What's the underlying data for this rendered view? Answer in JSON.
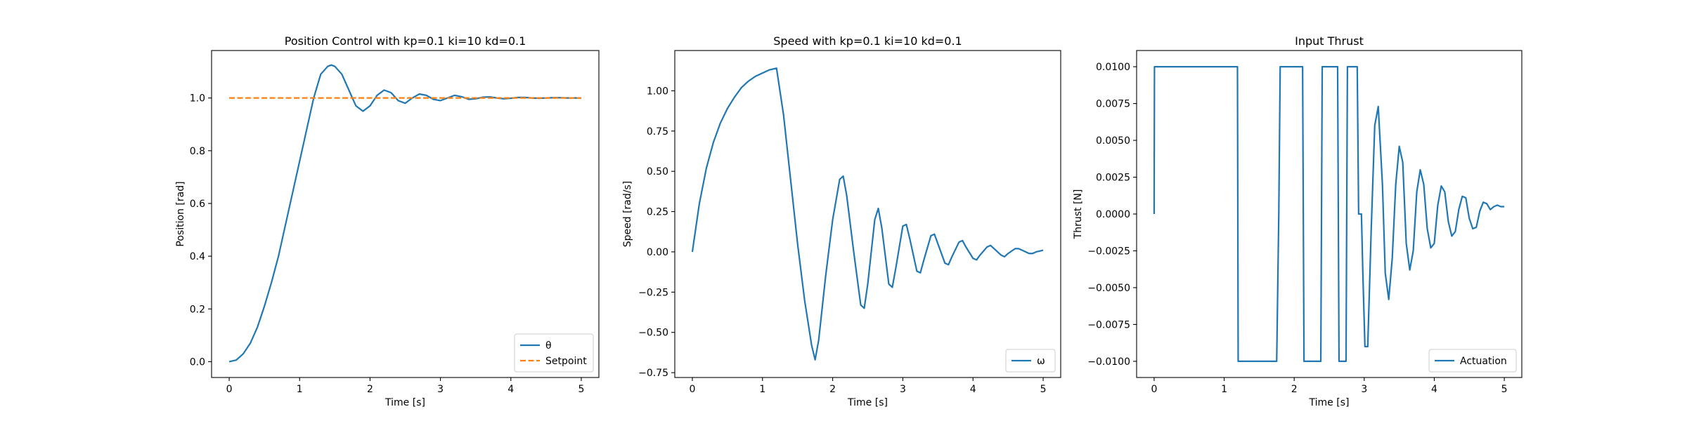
{
  "chart_data": [
    {
      "type": "line",
      "title": "Position Control with kp=0.1 ki=10 kd=0.1",
      "xlabel": "Time [s]",
      "ylabel": "Position [rad]",
      "xlim": [
        -0.25,
        5.25
      ],
      "ylim": [
        -0.06,
        1.18
      ],
      "xticks": [
        0,
        1,
        2,
        3,
        4,
        5
      ],
      "yticks": [
        0.0,
        0.2,
        0.4,
        0.6,
        0.8,
        1.0
      ],
      "ytick_labels": [
        "0.0",
        "0.2",
        "0.4",
        "0.6",
        "0.8",
        "1.0"
      ],
      "legend": "lower-right",
      "grid": false,
      "series": [
        {
          "name": "θ",
          "color": "#1f77b4",
          "style": "solid",
          "x": [
            0,
            0.1,
            0.2,
            0.3,
            0.4,
            0.5,
            0.6,
            0.7,
            0.8,
            0.9,
            1.0,
            1.1,
            1.2,
            1.3,
            1.4,
            1.45,
            1.5,
            1.6,
            1.7,
            1.8,
            1.9,
            2.0,
            2.1,
            2.2,
            2.3,
            2.4,
            2.5,
            2.6,
            2.7,
            2.8,
            2.9,
            3.0,
            3.1,
            3.2,
            3.3,
            3.4,
            3.5,
            3.6,
            3.7,
            3.8,
            3.9,
            4.0,
            4.1,
            4.2,
            4.3,
            4.4,
            4.5,
            4.6,
            4.7,
            4.8,
            4.9,
            5.0
          ],
          "y": [
            0.0,
            0.006,
            0.03,
            0.07,
            0.13,
            0.21,
            0.3,
            0.4,
            0.52,
            0.64,
            0.76,
            0.88,
            1.0,
            1.09,
            1.12,
            1.125,
            1.12,
            1.09,
            1.03,
            0.97,
            0.95,
            0.97,
            1.01,
            1.03,
            1.02,
            0.99,
            0.98,
            1.0,
            1.015,
            1.01,
            0.995,
            0.99,
            1.0,
            1.01,
            1.005,
            0.995,
            0.997,
            1.003,
            1.004,
            1.0,
            0.997,
            0.999,
            1.002,
            1.002,
            1.0,
            0.999,
            1.0,
            1.001,
            1.001,
            1.0,
            1.0,
            1.0
          ]
        },
        {
          "name": "Setpoint",
          "color": "#ff7f0e",
          "style": "dashed",
          "x": [
            0,
            5
          ],
          "y": [
            1.0,
            1.0
          ]
        }
      ]
    },
    {
      "type": "line",
      "title": "Speed with kp=0.1 ki=10 kd=0.1",
      "xlabel": "Time [s]",
      "ylabel": "Speed [rad/s]",
      "xlim": [
        -0.25,
        5.25
      ],
      "ylim": [
        -0.78,
        1.25
      ],
      "xticks": [
        0,
        1,
        2,
        3,
        4,
        5
      ],
      "yticks": [
        -0.75,
        -0.5,
        -0.25,
        0.0,
        0.25,
        0.5,
        0.75,
        1.0
      ],
      "ytick_labels": [
        "−0.75",
        "−0.50",
        "−0.25",
        "0.00",
        "0.25",
        "0.50",
        "0.75",
        "1.00"
      ],
      "legend": "lower-right",
      "grid": false,
      "series": [
        {
          "name": "ω",
          "color": "#1f77b4",
          "style": "solid",
          "x": [
            0,
            0.1,
            0.2,
            0.3,
            0.4,
            0.5,
            0.6,
            0.7,
            0.8,
            0.9,
            1.0,
            1.1,
            1.2,
            1.3,
            1.4,
            1.5,
            1.6,
            1.7,
            1.75,
            1.8,
            1.9,
            2.0,
            2.1,
            2.15,
            2.2,
            2.3,
            2.4,
            2.45,
            2.5,
            2.6,
            2.65,
            2.7,
            2.8,
            2.85,
            2.9,
            3.0,
            3.05,
            3.1,
            3.2,
            3.25,
            3.3,
            3.4,
            3.45,
            3.5,
            3.6,
            3.65,
            3.7,
            3.8,
            3.85,
            3.9,
            4.0,
            4.05,
            4.1,
            4.2,
            4.25,
            4.3,
            4.4,
            4.45,
            4.5,
            4.6,
            4.65,
            4.7,
            4.8,
            4.85,
            4.9,
            5.0
          ],
          "y": [
            0.0,
            0.3,
            0.52,
            0.68,
            0.8,
            0.89,
            0.96,
            1.02,
            1.06,
            1.09,
            1.11,
            1.13,
            1.14,
            0.85,
            0.45,
            0.05,
            -0.3,
            -0.58,
            -0.67,
            -0.55,
            -0.15,
            0.2,
            0.45,
            0.47,
            0.35,
            0.0,
            -0.33,
            -0.35,
            -0.2,
            0.2,
            0.27,
            0.15,
            -0.2,
            -0.22,
            -0.1,
            0.16,
            0.17,
            0.08,
            -0.12,
            -0.13,
            -0.05,
            0.1,
            0.11,
            0.05,
            -0.07,
            -0.08,
            -0.03,
            0.06,
            0.07,
            0.03,
            -0.04,
            -0.05,
            -0.02,
            0.03,
            0.04,
            0.02,
            -0.02,
            -0.03,
            -0.01,
            0.02,
            0.02,
            0.01,
            -0.01,
            -0.01,
            0.0,
            0.01
          ]
        }
      ]
    },
    {
      "type": "line",
      "title": "Input Thrust",
      "xlabel": "Time [s]",
      "ylabel": "Thrust [N]",
      "xlim": [
        -0.25,
        5.25
      ],
      "ylim": [
        -0.0111,
        0.0111
      ],
      "xticks": [
        0,
        1,
        2,
        3,
        4,
        5
      ],
      "yticks": [
        -0.01,
        -0.0075,
        -0.005,
        -0.0025,
        0.0,
        0.0025,
        0.005,
        0.0075,
        0.01
      ],
      "ytick_labels": [
        "−0.0100",
        "−0.0075",
        "−0.0050",
        "−0.0025",
        "0.0000",
        "0.0025",
        "0.0050",
        "0.0075",
        "0.0100"
      ],
      "legend": "lower-right",
      "grid": false,
      "series": [
        {
          "name": "Actuation",
          "color": "#1f77b4",
          "style": "solid",
          "x": [
            0,
            0.005,
            1.19,
            1.2,
            1.75,
            1.78,
            1.8,
            2.12,
            2.14,
            2.38,
            2.4,
            2.62,
            2.64,
            2.74,
            2.76,
            2.9,
            2.92,
            2.96,
            2.98,
            3.01,
            3.05,
            3.1,
            3.15,
            3.2,
            3.26,
            3.3,
            3.35,
            3.4,
            3.45,
            3.5,
            3.55,
            3.6,
            3.65,
            3.7,
            3.75,
            3.8,
            3.85,
            3.9,
            3.95,
            4.0,
            4.05,
            4.1,
            4.15,
            4.2,
            4.25,
            4.3,
            4.35,
            4.4,
            4.45,
            4.5,
            4.55,
            4.6,
            4.65,
            4.7,
            4.75,
            4.8,
            4.85,
            4.9,
            4.95,
            5.0
          ],
          "y": [
            0.0,
            0.01,
            0.01,
            -0.01,
            -0.01,
            0.0,
            0.01,
            0.01,
            -0.01,
            -0.01,
            0.01,
            0.01,
            -0.01,
            -0.01,
            0.01,
            0.01,
            0.0,
            0.0,
            -0.004,
            -0.009,
            -0.009,
            -0.001,
            0.006,
            0.0073,
            0.002,
            -0.004,
            -0.0058,
            -0.003,
            0.002,
            0.0046,
            0.0035,
            -0.002,
            -0.0038,
            -0.0025,
            0.0015,
            0.003,
            0.002,
            -0.001,
            -0.0023,
            -0.002,
            0.0006,
            0.0019,
            0.0015,
            -0.0005,
            -0.0015,
            -0.0012,
            0.0003,
            0.0012,
            0.0011,
            -0.0003,
            -0.001,
            -0.0009,
            0.0002,
            0.0008,
            0.0007,
            0.0003,
            0.0005,
            0.0006,
            0.0005,
            0.0005
          ]
        }
      ]
    }
  ]
}
